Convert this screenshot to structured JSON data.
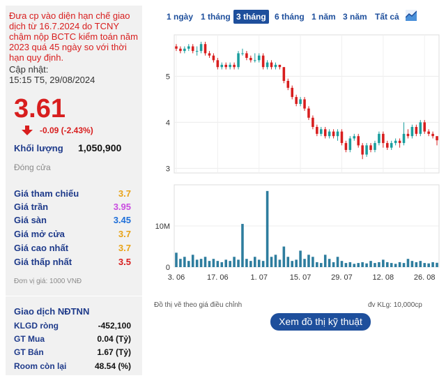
{
  "left": {
    "warning": "Đưa cp vào diện hạn chế giao dịch từ 16.7.2024 do TCNY chậm nộp BCTC kiểm toán năm 2023 quá 45 ngày so với thời hạn quy định.",
    "update_label": "Cập nhật:",
    "update_time": "15:15 T5, 29/08/2024",
    "price": "3.61",
    "change": "-0.09 (-2.43%)",
    "volume_label": "Khối lượng",
    "volume_value": "1,050,900",
    "close_label": "Đóng cửa",
    "stats": [
      {
        "label": "Giá tham chiếu",
        "value": "3.7",
        "color": "#e8a317"
      },
      {
        "label": "Giá trần",
        "value": "3.95",
        "color": "#c94ce0"
      },
      {
        "label": "Giá sàn",
        "value": "3.45",
        "color": "#1e6fd9"
      },
      {
        "label": "Giá mở cửa",
        "value": "3.7",
        "color": "#e8a317"
      },
      {
        "label": "Giá cao nhất",
        "value": "3.7",
        "color": "#e8a317"
      },
      {
        "label": "Giá thấp nhất",
        "value": "3.5",
        "color": "#d81e1e"
      }
    ],
    "unit": "Đơn vị giá: 1000 VNĐ",
    "ndt_title": "Giao dịch NĐTNN",
    "ndt": [
      {
        "label": "KLGD ròng",
        "value": "-452,100"
      },
      {
        "label": "GT Mua",
        "value": "0.04 (Tỷ)"
      },
      {
        "label": "GT Bán",
        "value": "1.67 (Tỷ)"
      },
      {
        "label": "Room còn lại",
        "value": "48.54 (%)"
      }
    ]
  },
  "tabs": [
    "1 ngày",
    "1 tháng",
    "3 tháng",
    "6 tháng",
    "1 năm",
    "3 năm",
    "Tất cả"
  ],
  "active_tab": "3 tháng",
  "notes": {
    "left": "Đồ thị vẽ theo giá điều chỉnh",
    "right": "đv KLg: 10,000cp"
  },
  "tech_button": "Xem đồ thị kỹ thuật",
  "colors": {
    "up": "#1a9e9e",
    "down": "#d81e1e",
    "accent": "#1e4f9c"
  },
  "chart_data": {
    "type": "candlestick",
    "price_y_ticks": [
      "5",
      "4",
      "3"
    ],
    "price_ylim": [
      2.9,
      5.9
    ],
    "volume_y_ticks": [
      "10M",
      "0"
    ],
    "volume_ylim": [
      0,
      20000000
    ],
    "x_tick_labels": [
      "3. 06",
      "17. 06",
      "1. 07",
      "15. 07",
      "29. 07",
      "12. 08",
      "26. 08"
    ],
    "x_tick_index": [
      0,
      10,
      20,
      30,
      40,
      50,
      60
    ],
    "candles": [
      [
        5.65,
        5.6,
        5.7,
        5.55
      ],
      [
        5.6,
        5.55,
        5.65,
        5.5
      ],
      [
        5.55,
        5.6,
        5.65,
        5.5
      ],
      [
        5.6,
        5.65,
        5.7,
        5.55
      ],
      [
        5.65,
        5.55,
        5.7,
        5.5
      ],
      [
        5.55,
        5.55,
        5.65,
        5.45
      ],
      [
        5.55,
        5.7,
        5.75,
        5.5
      ],
      [
        5.7,
        5.5,
        5.75,
        5.45
      ],
      [
        5.5,
        5.45,
        5.55,
        5.4
      ],
      [
        5.45,
        5.35,
        5.5,
        5.3
      ],
      [
        5.35,
        5.2,
        5.4,
        5.15
      ],
      [
        5.2,
        5.25,
        5.3,
        5.15
      ],
      [
        5.25,
        5.2,
        5.3,
        5.15
      ],
      [
        5.2,
        5.25,
        5.3,
        5.15
      ],
      [
        5.25,
        5.2,
        5.3,
        5.15
      ],
      [
        5.2,
        5.5,
        5.55,
        5.15
      ],
      [
        5.5,
        5.5,
        5.6,
        5.45
      ],
      [
        5.5,
        5.4,
        5.55,
        5.35
      ],
      [
        5.4,
        5.35,
        5.45,
        5.3
      ],
      [
        5.35,
        5.35,
        5.5,
        5.3
      ],
      [
        5.35,
        5.45,
        5.5,
        5.3
      ],
      [
        5.45,
        5.2,
        5.5,
        5.15
      ],
      [
        5.2,
        5.3,
        5.35,
        5.15
      ],
      [
        5.3,
        5.2,
        5.35,
        5.15
      ],
      [
        5.2,
        5.25,
        5.3,
        5.15
      ],
      [
        5.25,
        5.2,
        5.25,
        5.15
      ],
      [
        5.2,
        4.9,
        5.2,
        4.85
      ],
      [
        4.9,
        4.75,
        4.95,
        4.7
      ],
      [
        4.75,
        4.55,
        4.8,
        4.5
      ],
      [
        4.55,
        4.4,
        4.6,
        4.35
      ],
      [
        4.4,
        4.5,
        4.55,
        4.35
      ],
      [
        4.5,
        4.3,
        4.55,
        4.25
      ],
      [
        4.3,
        4.1,
        4.35,
        4.05
      ],
      [
        4.1,
        3.9,
        4.15,
        3.85
      ],
      [
        3.9,
        3.75,
        3.95,
        3.7
      ],
      [
        3.75,
        3.85,
        3.9,
        3.7
      ],
      [
        3.85,
        3.7,
        3.9,
        3.65
      ],
      [
        3.7,
        3.8,
        3.85,
        3.65
      ],
      [
        3.8,
        3.7,
        3.85,
        3.65
      ],
      [
        3.7,
        3.8,
        3.85,
        3.6
      ],
      [
        3.8,
        3.55,
        3.85,
        3.5
      ],
      [
        3.55,
        3.4,
        3.6,
        3.35
      ],
      [
        3.4,
        3.65,
        3.7,
        3.35
      ],
      [
        3.65,
        3.7,
        3.75,
        3.6
      ],
      [
        3.7,
        3.5,
        3.75,
        3.45
      ],
      [
        3.5,
        3.3,
        3.55,
        3.2
      ],
      [
        3.3,
        3.5,
        3.55,
        3.25
      ],
      [
        3.5,
        3.4,
        3.55,
        3.35
      ],
      [
        3.4,
        3.55,
        3.6,
        3.35
      ],
      [
        3.55,
        3.75,
        3.8,
        3.5
      ],
      [
        3.75,
        3.55,
        3.8,
        3.45
      ],
      [
        3.55,
        3.45,
        3.6,
        3.4
      ],
      [
        3.45,
        3.55,
        3.6,
        3.4
      ],
      [
        3.55,
        3.6,
        3.65,
        3.5
      ],
      [
        3.6,
        3.55,
        3.65,
        3.45
      ],
      [
        3.55,
        3.75,
        4.0,
        3.5
      ],
      [
        3.75,
        3.7,
        3.85,
        3.65
      ],
      [
        3.7,
        3.9,
        3.95,
        3.65
      ],
      [
        3.9,
        3.75,
        3.95,
        3.7
      ],
      [
        3.75,
        4.0,
        4.05,
        3.7
      ],
      [
        4.0,
        3.8,
        4.05,
        3.75
      ],
      [
        3.8,
        3.75,
        3.85,
        3.7
      ],
      [
        3.75,
        3.7,
        3.8,
        3.65
      ],
      [
        3.7,
        3.61,
        3.7,
        3.5
      ]
    ],
    "volumes": [
      3500000,
      2000000,
      2500000,
      1500000,
      3000000,
      1800000,
      2000000,
      2500000,
      1500000,
      2000000,
      1500000,
      1200000,
      1800000,
      1500000,
      2500000,
      1800000,
      10500000,
      2000000,
      1500000,
      2500000,
      1800000,
      1500000,
      18500000,
      2500000,
      3000000,
      1800000,
      5000000,
      2500000,
      1500000,
      1800000,
      4000000,
      2000000,
      3000000,
      2500000,
      1200000,
      1000000,
      3000000,
      2000000,
      1200000,
      2500000,
      1500000,
      1000000,
      1200000,
      800000,
      1000000,
      1200000,
      900000,
      1500000,
      1000000,
      1200000,
      1800000,
      1200000,
      1000000,
      800000,
      1200000,
      1000000,
      2000000,
      1500000,
      1200000,
      1500000,
      1000000,
      900000,
      1200000,
      1050900
    ]
  }
}
